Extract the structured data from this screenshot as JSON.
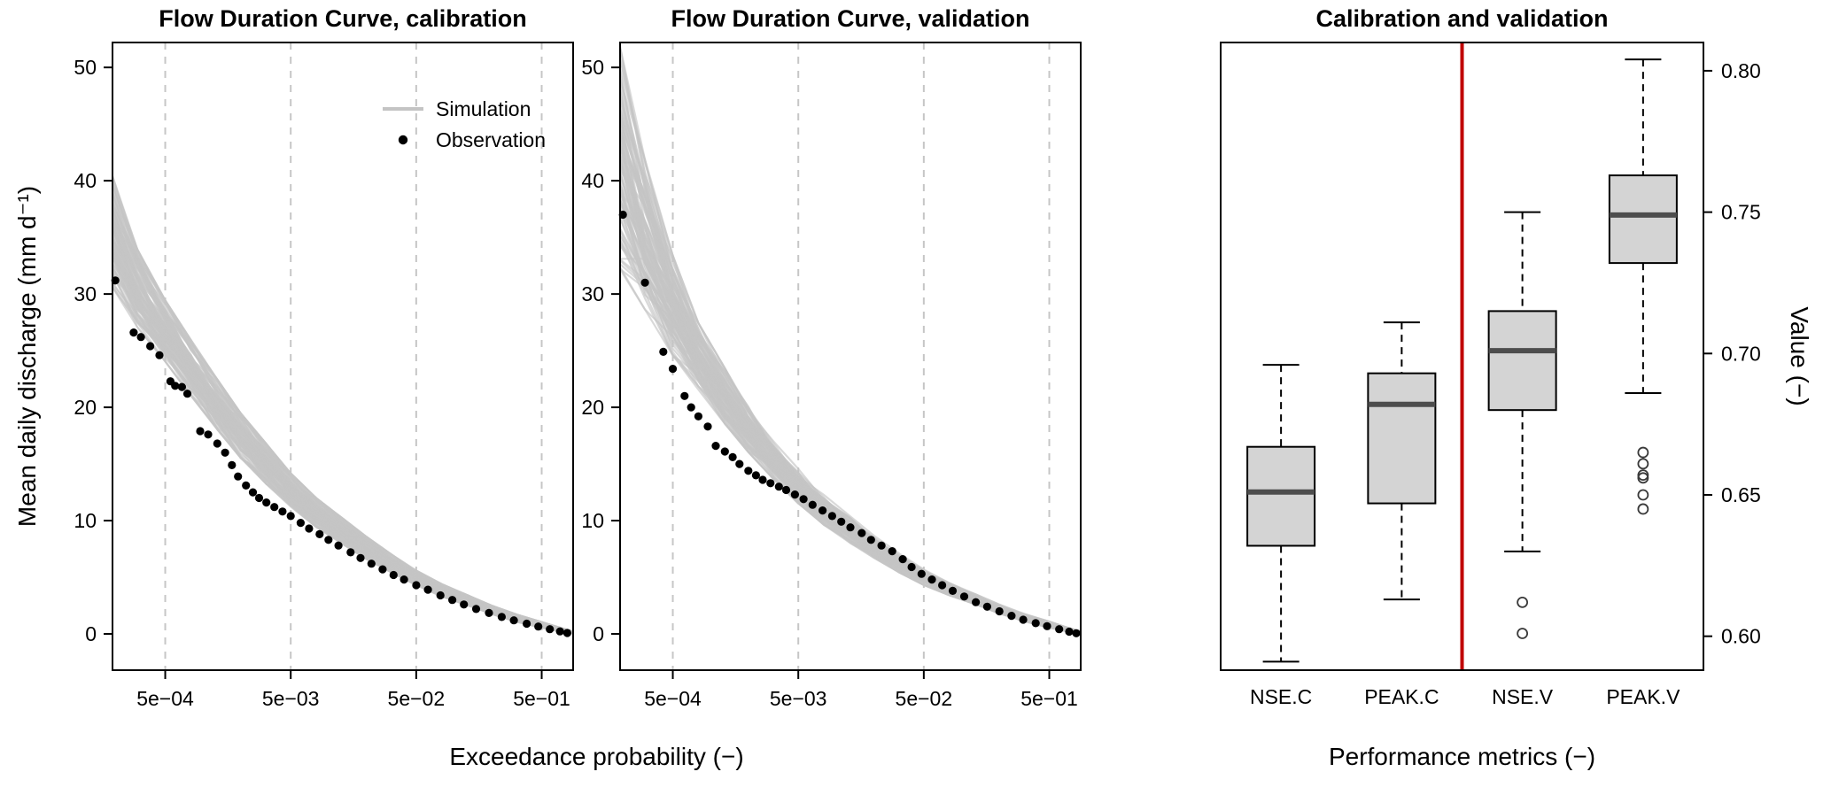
{
  "figure": {
    "background": "#ffffff",
    "shared_xlabel": "Exceedance probability (−)",
    "boxplot_xlabel": "Performance metrics (−)",
    "left_ylabel": "Mean daily discharge (mm d⁻¹)",
    "right_ylabel": "Value (−)"
  },
  "chart_data": [
    {
      "id": "fdc-calibration",
      "type": "line",
      "title": "Flow Duration Curve, calibration",
      "xlabel": "Exceedance probability (−)",
      "ylabel": "Mean daily discharge (mm d⁻¹)",
      "xscale": "log",
      "xlim": [
        0.00019,
        0.89
      ],
      "ylim": [
        -3.2,
        52.2
      ],
      "xticks": [
        0.0005,
        0.005,
        0.05,
        0.5
      ],
      "xtick_labels": [
        "5e−04",
        "5e−03",
        "5e−02",
        "5e−01"
      ],
      "yticks": [
        0,
        10,
        20,
        30,
        40,
        50
      ],
      "grid": "vertical-dashed",
      "legend": [
        {
          "label": "Simulation",
          "marker": "line"
        },
        {
          "label": "Observation",
          "marker": "point"
        }
      ],
      "style": {
        "grid_color": "#c6c6c6",
        "frame_color": "#000000"
      },
      "series": [
        {
          "name": "Simulation",
          "kind": "ensemble",
          "color": "#c4c4c4",
          "n_lines": 95,
          "x": [
            0.00019,
            0.0003,
            0.0005,
            0.0008,
            0.0013,
            0.002,
            0.0032,
            0.005,
            0.008,
            0.013,
            0.02,
            0.032,
            0.05,
            0.08,
            0.13,
            0.2,
            0.32,
            0.5,
            0.7,
            0.88
          ],
          "upper": [
            40.5,
            34.0,
            29.5,
            26.0,
            22.5,
            19.5,
            16.8,
            14.2,
            12.0,
            10.2,
            8.6,
            7.0,
            5.6,
            4.4,
            3.4,
            2.5,
            1.7,
            1.05,
            0.55,
            0.25
          ],
          "lower": [
            30.5,
            27.0,
            24.0,
            21.0,
            18.0,
            15.5,
            13.2,
            11.2,
            9.4,
            7.9,
            6.6,
            5.4,
            4.3,
            3.3,
            2.5,
            1.75,
            1.05,
            0.55,
            0.22,
            0.05
          ]
        },
        {
          "name": "Observation",
          "kind": "points",
          "color": "#000000",
          "points": [
            [
              0.0002,
              31.2
            ],
            [
              0.00028,
              26.6
            ],
            [
              0.00032,
              26.2
            ],
            [
              0.00038,
              25.4
            ],
            [
              0.00045,
              24.6
            ],
            [
              0.00055,
              22.3
            ],
            [
              0.0006,
              21.9
            ],
            [
              0.00068,
              21.8
            ],
            [
              0.00075,
              21.2
            ],
            [
              0.00095,
              17.9
            ],
            [
              0.0011,
              17.6
            ],
            [
              0.0013,
              16.8
            ],
            [
              0.0015,
              16.0
            ],
            [
              0.0017,
              14.9
            ],
            [
              0.0019,
              13.9
            ],
            [
              0.0022,
              13.1
            ],
            [
              0.0025,
              12.5
            ],
            [
              0.0028,
              12.0
            ],
            [
              0.0032,
              11.6
            ],
            [
              0.0037,
              11.2
            ],
            [
              0.0043,
              10.8
            ],
            [
              0.005,
              10.4
            ],
            [
              0.006,
              9.8
            ],
            [
              0.007,
              9.3
            ],
            [
              0.0085,
              8.8
            ],
            [
              0.01,
              8.3
            ],
            [
              0.012,
              7.8
            ],
            [
              0.015,
              7.2
            ],
            [
              0.018,
              6.7
            ],
            [
              0.022,
              6.2
            ],
            [
              0.027,
              5.7
            ],
            [
              0.033,
              5.2
            ],
            [
              0.04,
              4.8
            ],
            [
              0.05,
              4.3
            ],
            [
              0.062,
              3.9
            ],
            [
              0.078,
              3.4
            ],
            [
              0.097,
              3.0
            ],
            [
              0.12,
              2.6
            ],
            [
              0.15,
              2.2
            ],
            [
              0.19,
              1.85
            ],
            [
              0.24,
              1.5
            ],
            [
              0.3,
              1.2
            ],
            [
              0.38,
              0.9
            ],
            [
              0.47,
              0.65
            ],
            [
              0.58,
              0.42
            ],
            [
              0.7,
              0.22
            ],
            [
              0.8,
              0.08
            ]
          ]
        }
      ]
    },
    {
      "id": "fdc-validation",
      "type": "line",
      "title": "Flow Duration Curve, validation",
      "xlabel": "Exceedance probability (−)",
      "ylabel": "",
      "xscale": "log",
      "xlim": [
        0.00019,
        0.89
      ],
      "ylim": [
        -3.2,
        52.2
      ],
      "xticks": [
        0.0005,
        0.005,
        0.05,
        0.5
      ],
      "xtick_labels": [
        "5e−04",
        "5e−03",
        "5e−02",
        "5e−01"
      ],
      "yticks": [
        0,
        10,
        20,
        30,
        40,
        50
      ],
      "grid": "vertical-dashed",
      "legend": null,
      "style": {
        "grid_color": "#c6c6c6",
        "frame_color": "#000000"
      },
      "series": [
        {
          "name": "Simulation",
          "kind": "ensemble",
          "color": "#c4c4c4",
          "n_lines": 95,
          "x": [
            0.00019,
            0.0003,
            0.0005,
            0.0008,
            0.0013,
            0.002,
            0.0032,
            0.005,
            0.008,
            0.013,
            0.02,
            0.032,
            0.05,
            0.08,
            0.13,
            0.2,
            0.32,
            0.5,
            0.7,
            0.88
          ],
          "upper": [
            52.0,
            42.0,
            33.5,
            27.5,
            23.5,
            20.2,
            17.2,
            14.6,
            12.3,
            10.4,
            8.7,
            7.1,
            5.7,
            4.5,
            3.5,
            2.6,
            1.75,
            1.1,
            0.55,
            0.25
          ],
          "lower": [
            32.0,
            28.5,
            24.5,
            21.5,
            18.5,
            16.0,
            13.6,
            11.5,
            9.6,
            8.0,
            6.7,
            5.4,
            4.3,
            3.4,
            2.6,
            1.8,
            1.1,
            0.55,
            0.22,
            0.05
          ]
        },
        {
          "name": "Observation",
          "kind": "points",
          "color": "#000000",
          "points": [
            [
              0.0002,
              37.0
            ],
            [
              0.0003,
              31.0
            ],
            [
              0.00042,
              24.9
            ],
            [
              0.0005,
              23.4
            ],
            [
              0.00062,
              21.0
            ],
            [
              0.0007,
              20.0
            ],
            [
              0.0008,
              19.2
            ],
            [
              0.00095,
              18.3
            ],
            [
              0.0011,
              16.6
            ],
            [
              0.0013,
              16.1
            ],
            [
              0.0015,
              15.6
            ],
            [
              0.0017,
              15.0
            ],
            [
              0.002,
              14.4
            ],
            [
              0.0023,
              14.0
            ],
            [
              0.0026,
              13.6
            ],
            [
              0.003,
              13.3
            ],
            [
              0.0035,
              13.0
            ],
            [
              0.004,
              12.7
            ],
            [
              0.0047,
              12.3
            ],
            [
              0.0055,
              11.9
            ],
            [
              0.0065,
              11.4
            ],
            [
              0.0078,
              10.9
            ],
            [
              0.0093,
              10.4
            ],
            [
              0.011,
              9.9
            ],
            [
              0.013,
              9.4
            ],
            [
              0.016,
              8.9
            ],
            [
              0.019,
              8.3
            ],
            [
              0.023,
              7.8
            ],
            [
              0.028,
              7.3
            ],
            [
              0.034,
              6.6
            ],
            [
              0.04,
              5.9
            ],
            [
              0.048,
              5.3
            ],
            [
              0.058,
              4.8
            ],
            [
              0.07,
              4.3
            ],
            [
              0.085,
              3.8
            ],
            [
              0.105,
              3.3
            ],
            [
              0.13,
              2.8
            ],
            [
              0.16,
              2.4
            ],
            [
              0.2,
              2.0
            ],
            [
              0.25,
              1.6
            ],
            [
              0.31,
              1.25
            ],
            [
              0.39,
              0.95
            ],
            [
              0.48,
              0.68
            ],
            [
              0.6,
              0.42
            ],
            [
              0.72,
              0.2
            ],
            [
              0.82,
              0.06
            ]
          ]
        }
      ]
    },
    {
      "id": "metrics-boxplot",
      "type": "boxplot",
      "title": "Calibration and validation",
      "xlabel": "Performance metrics (−)",
      "ylabel": "Value (−)",
      "ylim": [
        0.588,
        0.81
      ],
      "yticks": [
        0.6,
        0.65,
        0.7,
        0.75,
        0.8
      ],
      "ytick_labels": [
        "0.60",
        "0.65",
        "0.70",
        "0.75",
        "0.80"
      ],
      "categories": [
        "NSE.C",
        "PEAK.C",
        "NSE.V",
        "PEAK.V"
      ],
      "separator": {
        "between": [
          "PEAK.C",
          "NSE.V"
        ],
        "color": "#c00000"
      },
      "style": {
        "box_fill": "#d4d4d4",
        "median_color": "#4d4d4d",
        "outlier_color": "#3a3a3a"
      },
      "boxes": [
        {
          "label": "NSE.C",
          "whisker_low": 0.591,
          "q1": 0.632,
          "median": 0.651,
          "q3": 0.667,
          "whisker_high": 0.696,
          "outliers": []
        },
        {
          "label": "PEAK.C",
          "whisker_low": 0.613,
          "q1": 0.647,
          "median": 0.682,
          "q3": 0.693,
          "whisker_high": 0.711,
          "outliers": []
        },
        {
          "label": "NSE.V",
          "whisker_low": 0.63,
          "q1": 0.68,
          "median": 0.701,
          "q3": 0.715,
          "whisker_high": 0.75,
          "outliers": [
            0.612,
            0.601
          ]
        },
        {
          "label": "PEAK.V",
          "whisker_low": 0.686,
          "q1": 0.732,
          "median": 0.749,
          "q3": 0.763,
          "whisker_high": 0.804,
          "outliers": [
            0.665,
            0.661,
            0.657,
            0.656,
            0.65,
            0.645
          ]
        }
      ]
    }
  ]
}
